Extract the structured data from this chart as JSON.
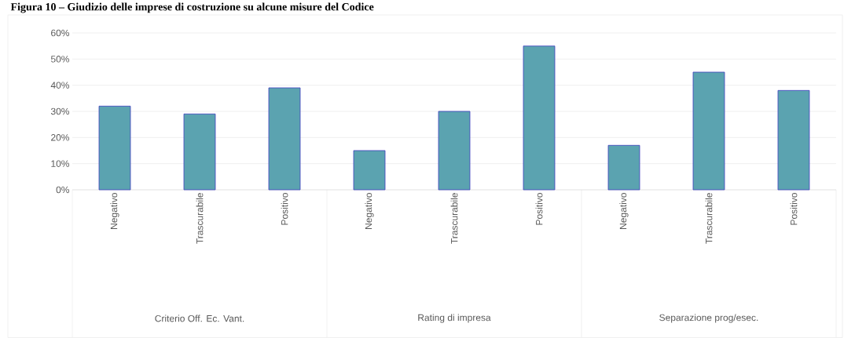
{
  "chart_data": {
    "type": "bar",
    "title": "Figura 10 – Giudizio delle imprese di costruzione su alcune misure del Codice",
    "categories": [
      "Negativo",
      "Trascurabile",
      "Positivo",
      "Negativo",
      "Trascurabile",
      "Positivo",
      "Negativo",
      "Trascurabile",
      "Positivo"
    ],
    "values": [
      32,
      29,
      39,
      15,
      30,
      55,
      17,
      45,
      38
    ],
    "color": "#5ba3b0",
    "annotations": [
      "Criterio Off. Ec. Vant.",
      "Rating di impresa",
      "Separazione prog/esec."
    ],
    "ylim": [
      0,
      60
    ],
    "yticks": [
      {
        "value": 0,
        "label": "0%"
      },
      {
        "value": 10,
        "label": "10%"
      },
      {
        "value": 20,
        "label": "20%"
      },
      {
        "value": 30,
        "label": "30%"
      },
      {
        "value": 40,
        "label": "40%"
      },
      {
        "value": 50,
        "label": "50%"
      },
      {
        "value": 60,
        "label": "60%"
      }
    ],
    "grid": "y"
  }
}
